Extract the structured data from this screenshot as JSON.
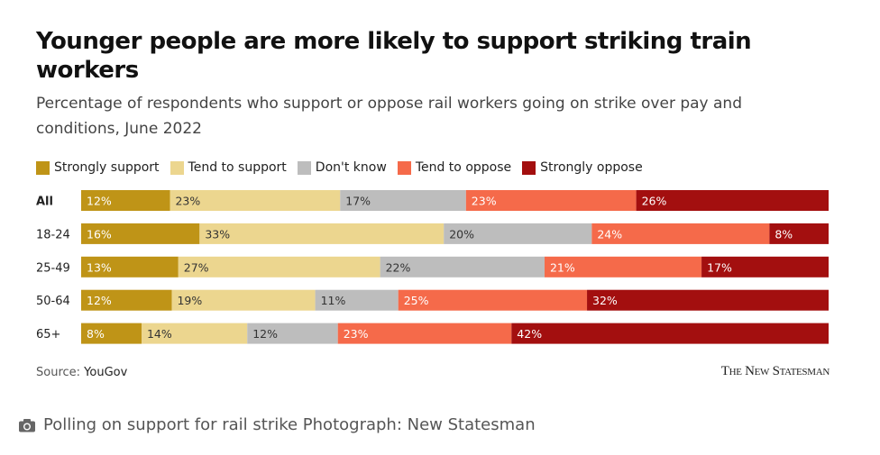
{
  "title": "Younger people are more likely to support striking train workers",
  "subtitle": "Percentage of respondents who support or oppose rail workers going on strike over pay and conditions, June 2022",
  "source_label": "Source:",
  "source_value": "YouGov",
  "brand": "The New Statesman",
  "caption": "Polling on support for rail strike Photograph: New Statesman",
  "chart_data": {
    "type": "bar",
    "orientation": "horizontal",
    "stacked": true,
    "categories": [
      "All",
      "18-24",
      "25-49",
      "50-64",
      "65+"
    ],
    "series": [
      {
        "name": "Strongly support",
        "color": "#bf9417",
        "values": [
          12,
          16,
          13,
          12,
          8
        ]
      },
      {
        "name": "Tend to support",
        "color": "#ecd68f",
        "values": [
          23,
          33,
          27,
          19,
          14
        ]
      },
      {
        "name": "Don't know",
        "color": "#bdbdbd",
        "values": [
          17,
          20,
          22,
          11,
          12
        ]
      },
      {
        "name": "Tend to oppose",
        "color": "#f56a4a",
        "values": [
          23,
          24,
          21,
          25,
          23
        ]
      },
      {
        "name": "Strongly oppose",
        "color": "#a30f0f",
        "values": [
          26,
          8,
          17,
          32,
          42
        ]
      }
    ],
    "value_suffix": "%",
    "legend_position": "top-left"
  }
}
